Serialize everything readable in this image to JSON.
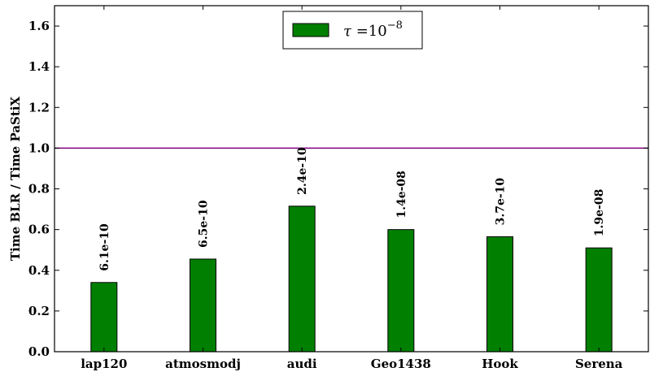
{
  "chart_data": {
    "type": "bar",
    "categories": [
      "lap120",
      "atmosmodj",
      "audi",
      "Geo1438",
      "Hook",
      "Serena"
    ],
    "series": [
      {
        "name": "τ = 10⁻⁸",
        "values": [
          0.34,
          0.455,
          0.715,
          0.6,
          0.565,
          0.51
        ],
        "bar_labels": [
          "6.1e-10",
          "6.5e-10",
          "2.4e-10",
          "1.4e-08",
          "3.7e-10",
          "1.9e-08"
        ],
        "color": "#007f00"
      }
    ],
    "reference_line": {
      "y": 1.0,
      "color": "#800080"
    },
    "ylabel": "Time BLR / Time PaStiX",
    "xlabel": "",
    "ylim": [
      0,
      1.7
    ],
    "yticks": [
      "0.0",
      "0.2",
      "0.4",
      "0.6",
      "0.8",
      "1.0",
      "1.2",
      "1.4",
      "1.6"
    ],
    "grid": false,
    "legend": {
      "placement": "top-center",
      "symbol": "τ",
      "base": "=10",
      "exponent": "−8"
    }
  }
}
